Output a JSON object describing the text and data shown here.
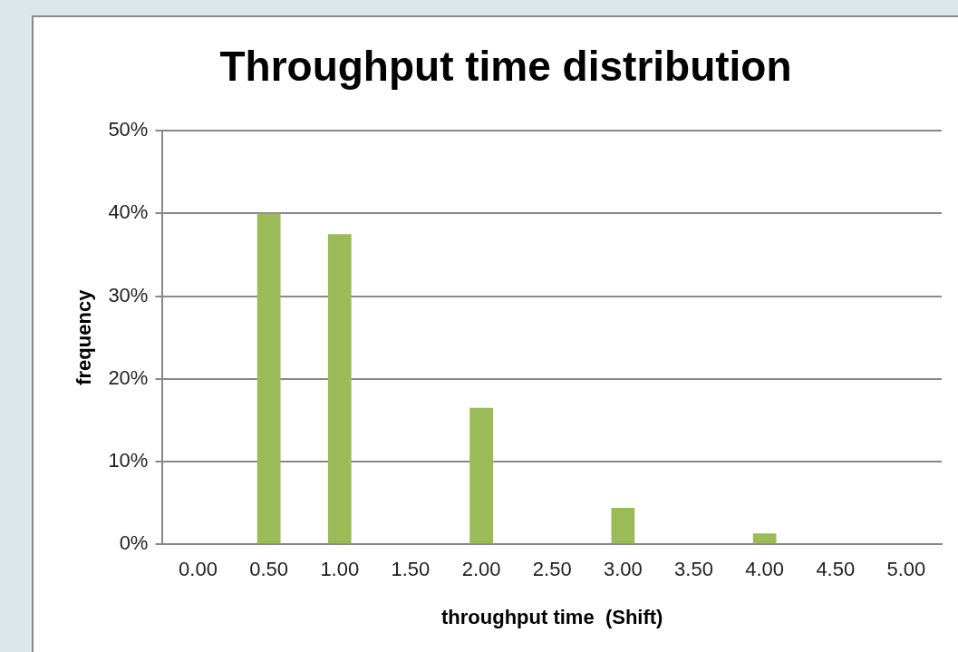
{
  "chart_data": {
    "type": "bar",
    "title": "Throughput time distribution",
    "xlabel": "throughput time  (Shift)",
    "ylabel": "frequency",
    "categories": [
      "0.00",
      "0.50",
      "1.00",
      "1.50",
      "2.00",
      "2.50",
      "3.00",
      "3.50",
      "4.00",
      "4.50",
      "5.00"
    ],
    "values": [
      0,
      40,
      37.5,
      0,
      16.5,
      0,
      4.4,
      0,
      1.3,
      0,
      0
    ],
    "color": "#9bbb59",
    "ylim": [
      0,
      50
    ],
    "yticks": [
      {
        "value": 0,
        "label": "0%"
      },
      {
        "value": 10,
        "label": "10%"
      },
      {
        "value": 20,
        "label": "20%"
      },
      {
        "value": 30,
        "label": "30%"
      },
      {
        "value": 40,
        "label": "40%"
      },
      {
        "value": 50,
        "label": "50%"
      }
    ],
    "grid": "y",
    "legend": false
  }
}
